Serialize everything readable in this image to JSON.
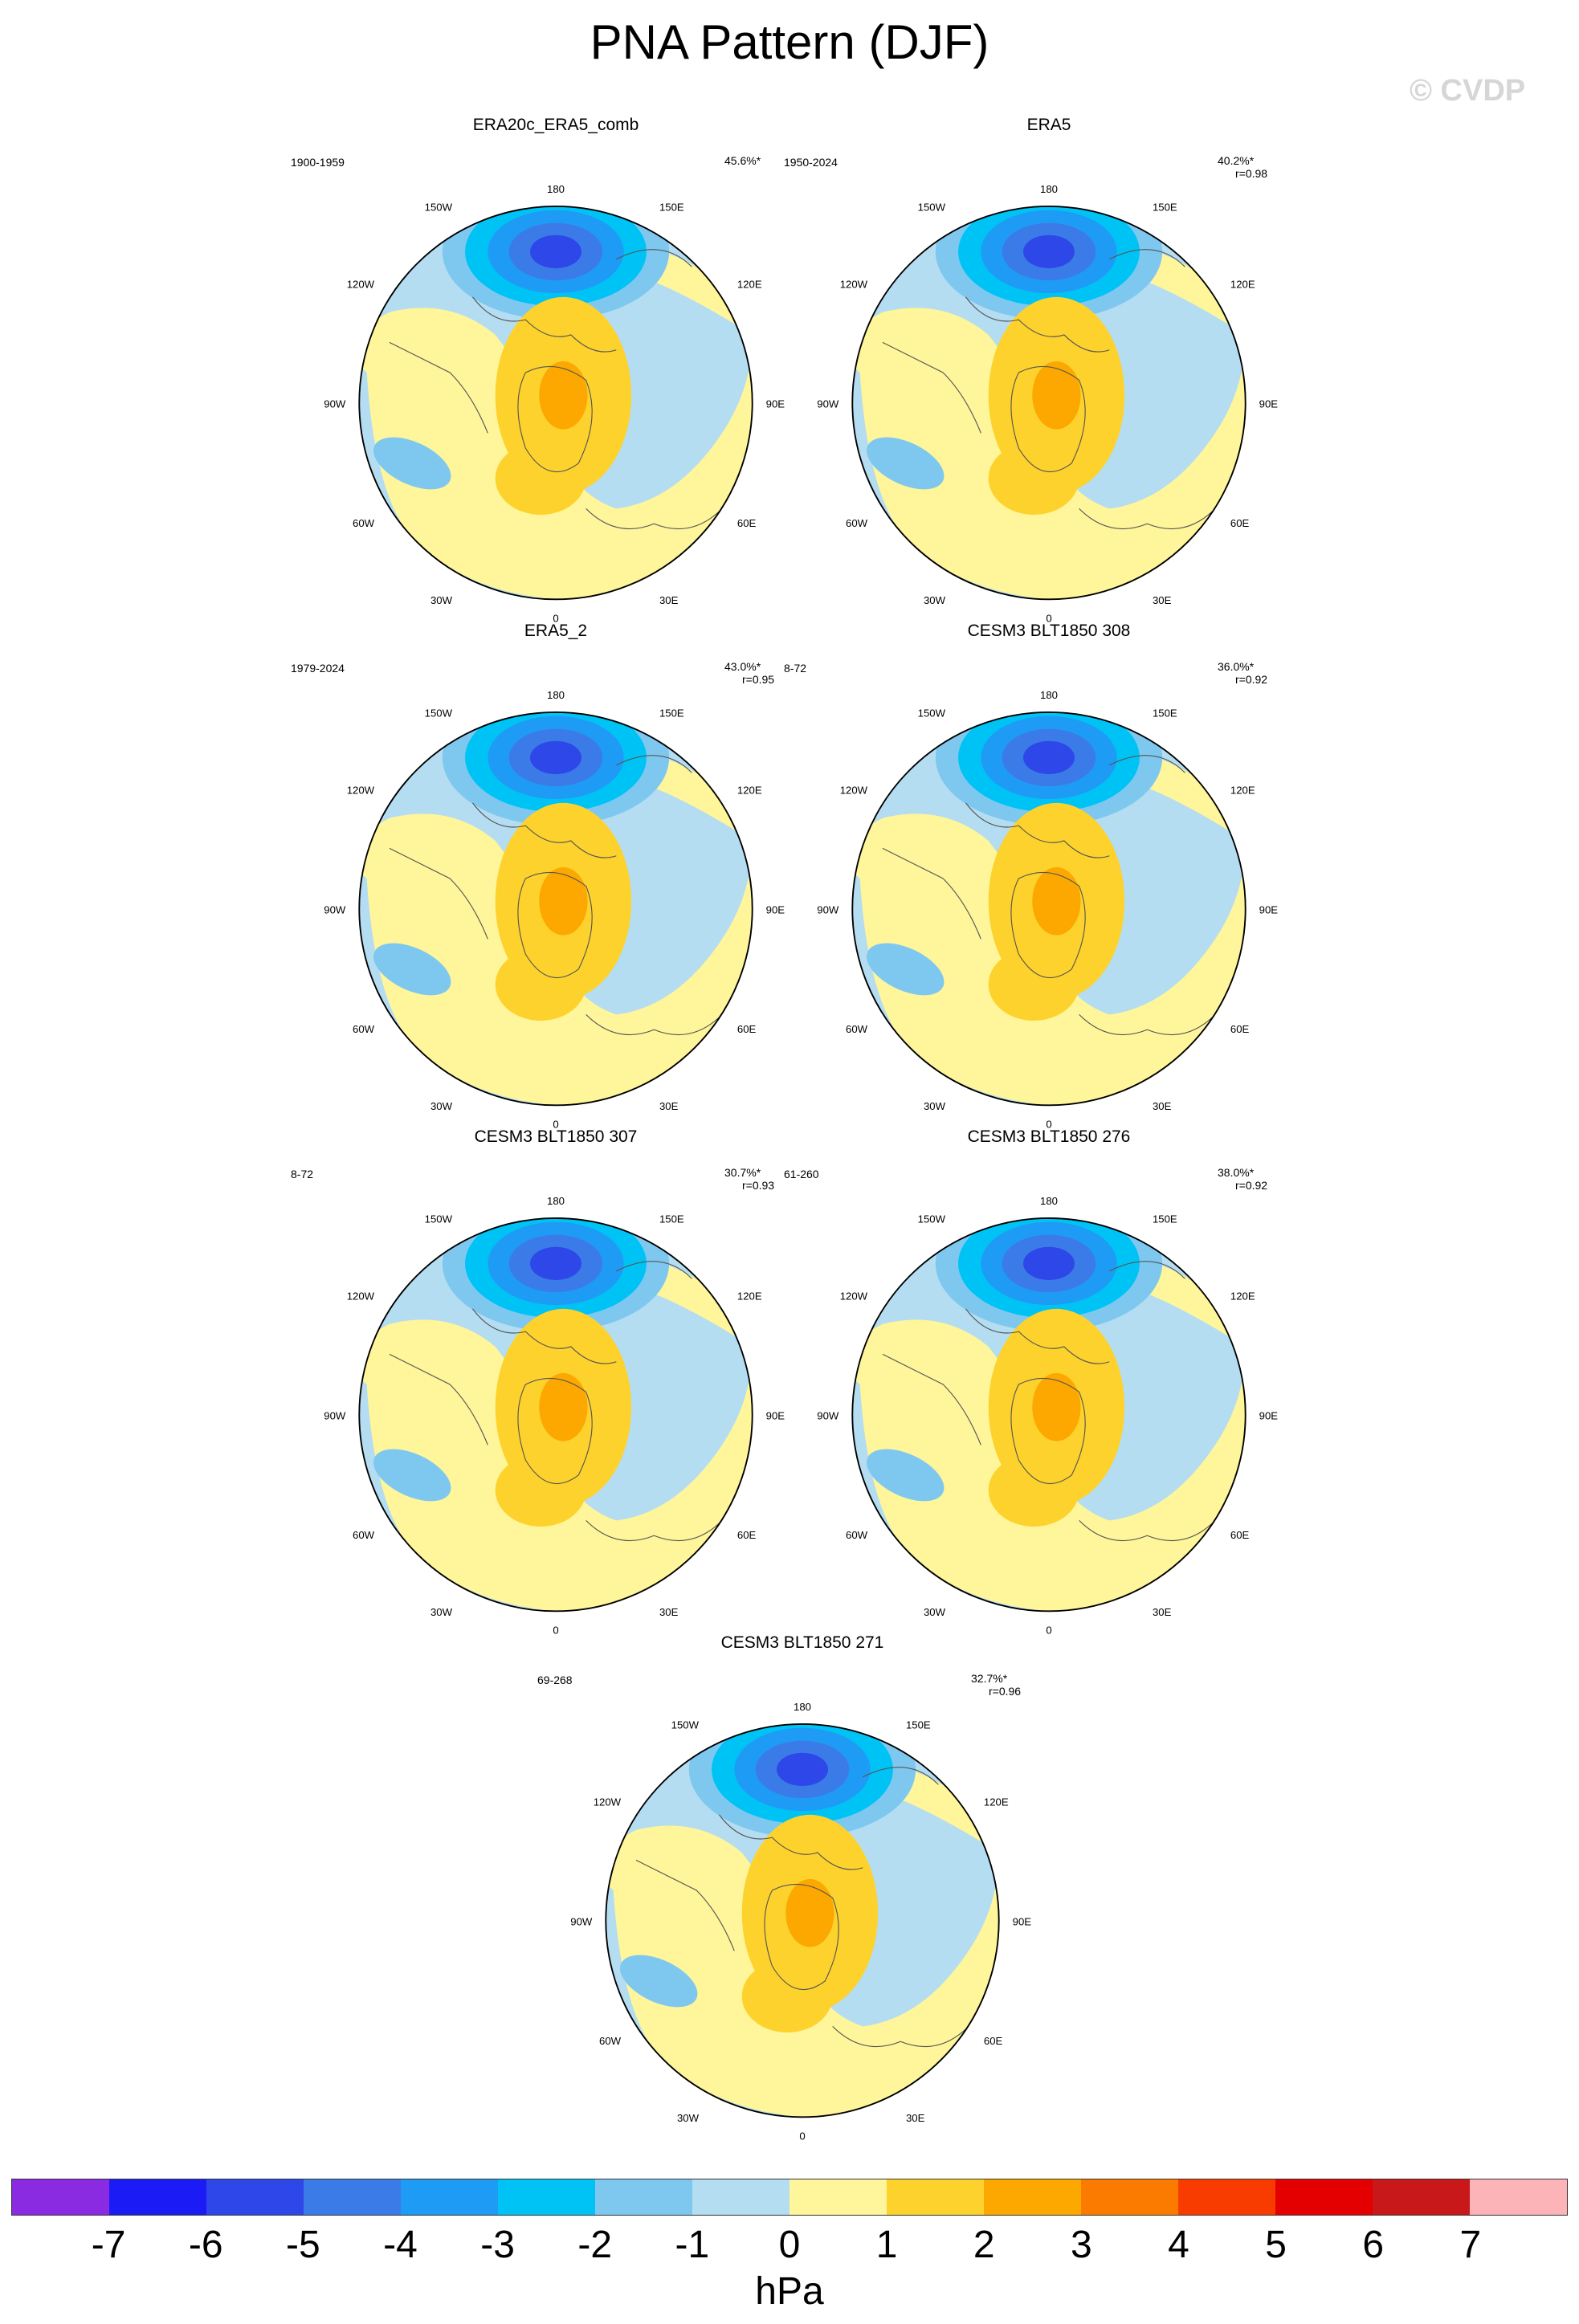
{
  "figure": {
    "title": "PNA Pattern (DJF)",
    "watermark": "© CVDP",
    "colorbar": {
      "units": "hPa",
      "ticks": [
        "-7",
        "-6",
        "-5",
        "-4",
        "-3",
        "-2",
        "-1",
        "0",
        "1",
        "2",
        "3",
        "4",
        "5",
        "6",
        "7"
      ],
      "colors": [
        "#8a2be2",
        "#1b1bf5",
        "#2e47e8",
        "#3b7be8",
        "#1e9cf5",
        "#00c3f5",
        "#7ec8f0",
        "#b4ddf2",
        "#fff59a",
        "#fdd22c",
        "#fca800",
        "#fb7b00",
        "#f83c00",
        "#e40000",
        "#c8181a",
        "#fcb4b9"
      ]
    },
    "axis_labels": {
      "lon_180": "180",
      "lon_0": "0",
      "lon_150W": "150W",
      "lon_150E": "150E",
      "lon_120W": "120W",
      "lon_120E": "120E",
      "lon_90W": "90W",
      "lon_90E": "90E",
      "lon_60W": "60W",
      "lon_60E": "60E",
      "lon_30W": "30W",
      "lon_30E": "30E"
    }
  },
  "panels": [
    {
      "title": "ERA20c_ERA5_comb",
      "period": "1900-1959",
      "variance": "45.6%*",
      "corr": ""
    },
    {
      "title": "ERA5",
      "period": "1950-2024",
      "variance": "40.2%*",
      "corr": "r=0.98"
    },
    {
      "title": "ERA5_2",
      "period": "1979-2024",
      "variance": "43.0%*",
      "corr": "r=0.95"
    },
    {
      "title": "CESM3 BLT1850 308",
      "period": "8-72",
      "variance": "36.0%*",
      "corr": "r=0.92"
    },
    {
      "title": "CESM3 BLT1850 307",
      "period": "8-72",
      "variance": "30.7%*",
      "corr": "r=0.93"
    },
    {
      "title": "CESM3 BLT1850 276",
      "period": "61-260",
      "variance": "38.0%*",
      "corr": "r=0.92"
    },
    {
      "title": "CESM3 BLT1850 271",
      "period": "69-268",
      "variance": "32.7%*",
      "corr": "r=0.96"
    }
  ]
}
